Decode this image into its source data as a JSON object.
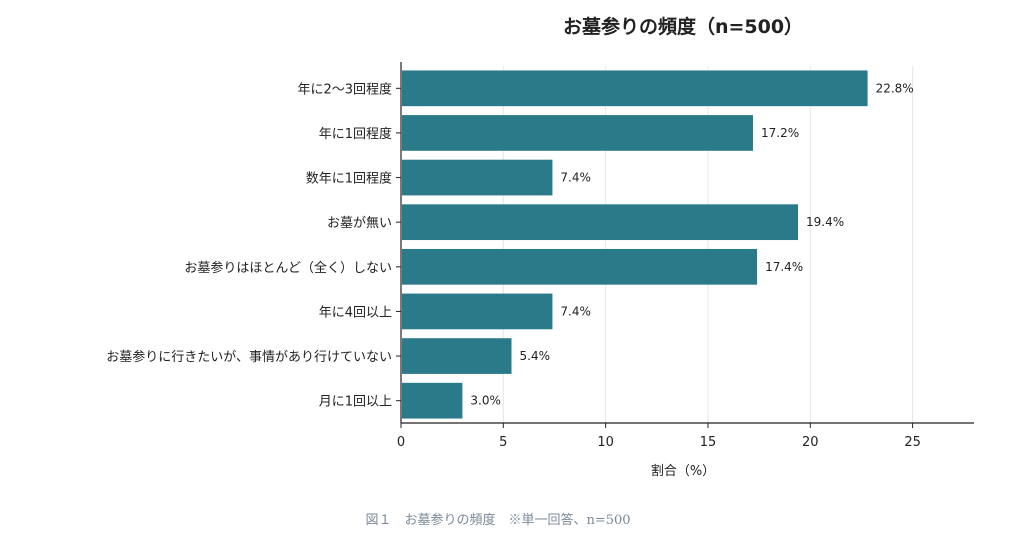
{
  "chart_data": {
    "type": "bar",
    "orientation": "horizontal",
    "title": "お墓参りの頻度（n=500）",
    "xlabel": "割合（%）",
    "ylabel": "",
    "xlim": [
      0,
      28
    ],
    "xticks": [
      0,
      5,
      10,
      15,
      20,
      25
    ],
    "grid": true,
    "categories": [
      "年に2～3回程度",
      "年に1回程度",
      "数年に1回程度",
      "お墓が無い",
      "お墓参りはほとんど（全く）しない",
      "年に4回以上",
      "お墓参りに行きたいが、事情があり行けていない",
      "月に1回以上"
    ],
    "values": [
      22.8,
      17.2,
      7.4,
      19.4,
      17.4,
      7.4,
      5.4,
      3.0
    ],
    "value_labels": [
      "22.8%",
      "17.2%",
      "7.4%",
      "19.4%",
      "17.4%",
      "7.4%",
      "5.4%",
      "3.0%"
    ],
    "bar_color": "#2b7a8a",
    "caption": "図１　お墓参りの頻度　※単一回答、n=500"
  }
}
